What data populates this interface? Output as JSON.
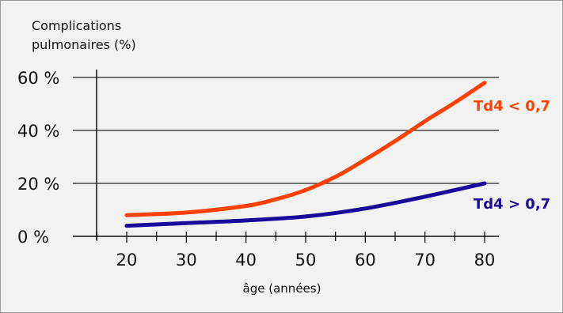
{
  "chart_data": {
    "type": "line",
    "title": "",
    "ylabel_lines": [
      "Complications",
      "pulmonaires (%)"
    ],
    "xlabel": "âge (années)",
    "xlim": [
      10,
      80
    ],
    "ylim": [
      0,
      60
    ],
    "x_ticks": [
      20,
      30,
      40,
      50,
      60,
      70,
      80
    ],
    "x_tick_labels": [
      "20",
      "30",
      "40",
      "50",
      "60",
      "70",
      "80"
    ],
    "y_ticks": [
      0,
      20,
      40,
      60
    ],
    "y_tick_labels": [
      "0 %",
      "20 %",
      "40 %",
      "60 %"
    ],
    "grid": "horizontal",
    "series": [
      {
        "name": "Td4 < 0,7",
        "color": "#ff4000",
        "x": [
          20,
          30,
          40,
          45,
          50,
          55,
          60,
          65,
          70,
          75,
          80
        ],
        "y": [
          8,
          9,
          11.5,
          14,
          17.5,
          22.5,
          29,
          36,
          43.5,
          50.5,
          58
        ]
      },
      {
        "name": "Td4 > 0,7",
        "color": "#1a0a99",
        "x": [
          20,
          30,
          40,
          50,
          60,
          70,
          80
        ],
        "y": [
          4,
          5,
          6,
          7.5,
          10.5,
          15,
          20
        ]
      }
    ]
  }
}
